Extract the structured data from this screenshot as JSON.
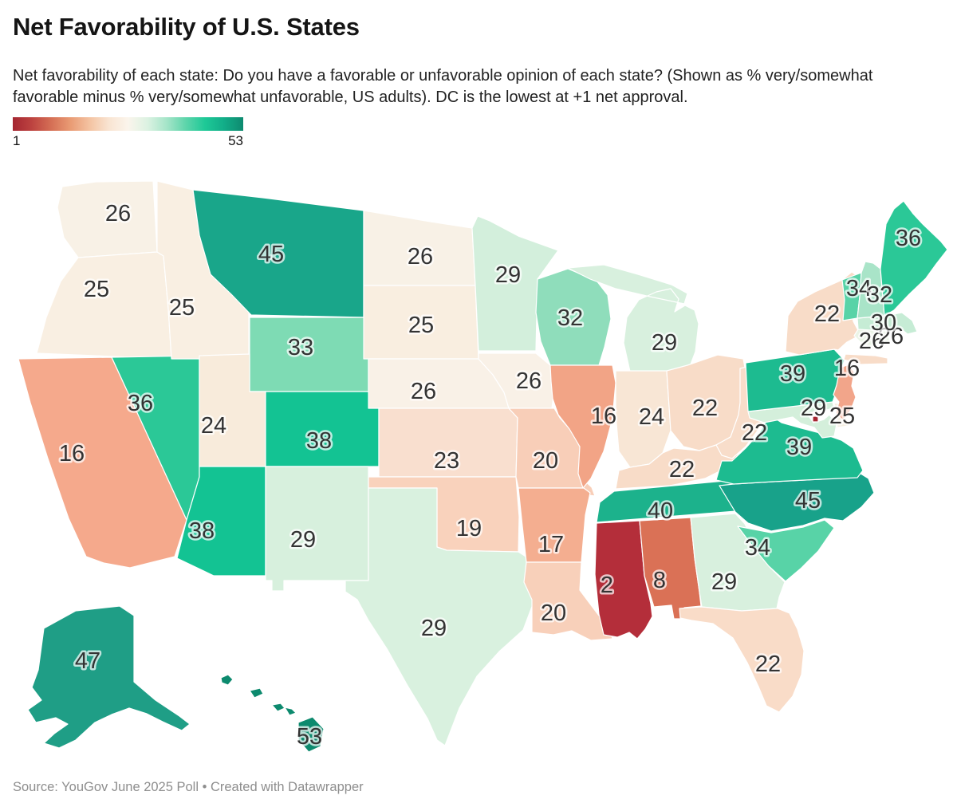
{
  "header": {
    "title": "Net Favorability of U.S. States",
    "subtitle": "Net favorability of each state: Do you have a favorable or unfavorable opinion of each state? (Shown as % very/somewhat favorable minus % very/somewhat unfavorable, US adults). DC is the lowest at +1 net approval."
  },
  "legend": {
    "min_label": "1",
    "max_label": "53",
    "gradient_stops": [
      "#a52631",
      "#bd4340",
      "#d56f55",
      "#e99b74",
      "#f4c3a2",
      "#f9e4d2",
      "#fbf5ec",
      "#dcf2e2",
      "#a6e5c9",
      "#5ed5ab",
      "#1ec997",
      "#12ad88",
      "#0e8a6f"
    ]
  },
  "footer": {
    "source": "Source: YouGov June 2025 Poll • Created with Datawrapper"
  },
  "chart_data": {
    "type": "choropleth",
    "title": "Net Favorability of U.S. States",
    "geography": "United States (50 states + DC)",
    "value_label": "Net favorability (% very/somewhat favorable minus % very/somewhat unfavorable, US adults)",
    "scale": {
      "min": 1,
      "max": 53,
      "palette": "diverging red to teal-green"
    },
    "states": [
      {
        "abbr": "WA",
        "name": "Washington",
        "value": 26,
        "color": "#f8f1e6"
      },
      {
        "abbr": "OR",
        "name": "Oregon",
        "value": 25,
        "color": "#f9efe2"
      },
      {
        "abbr": "CA",
        "name": "California",
        "value": 16,
        "color": "#f5a98c"
      },
      {
        "abbr": "NV",
        "name": "Nevada",
        "value": 36,
        "color": "#2bc897"
      },
      {
        "abbr": "ID",
        "name": "Idaho",
        "value": 25,
        "color": "#f9efe2"
      },
      {
        "abbr": "MT",
        "name": "Montana",
        "value": 45,
        "color": "#19a68a"
      },
      {
        "abbr": "WY",
        "name": "Wyoming",
        "value": 33,
        "color": "#7edbb4"
      },
      {
        "abbr": "UT",
        "name": "Utah",
        "value": 24,
        "color": "#f8ebdb"
      },
      {
        "abbr": "CO",
        "name": "Colorado",
        "value": 38,
        "color": "#13c393"
      },
      {
        "abbr": "AZ",
        "name": "Arizona",
        "value": 38,
        "color": "#13c393"
      },
      {
        "abbr": "NM",
        "name": "New Mexico",
        "value": 29,
        "color": "#d7f0dd"
      },
      {
        "abbr": "ND",
        "name": "North Dakota",
        "value": 26,
        "color": "#f8f1e6"
      },
      {
        "abbr": "SD",
        "name": "South Dakota",
        "value": 25,
        "color": "#f9eee0"
      },
      {
        "abbr": "NE",
        "name": "Nebraska",
        "value": 26,
        "color": "#f9f1e7"
      },
      {
        "abbr": "KS",
        "name": "Kansas",
        "value": 23,
        "color": "#f9dfcf"
      },
      {
        "abbr": "OK",
        "name": "Oklahoma",
        "value": 19,
        "color": "#f9d2bc"
      },
      {
        "abbr": "TX",
        "name": "Texas",
        "value": 29,
        "color": "#d9f1df"
      },
      {
        "abbr": "MN",
        "name": "Minnesota",
        "value": 29,
        "color": "#d3efdc"
      },
      {
        "abbr": "IA",
        "name": "Iowa",
        "value": 26,
        "color": "#f9f1e7"
      },
      {
        "abbr": "MO",
        "name": "Missouri",
        "value": 20,
        "color": "#f8ceb8"
      },
      {
        "abbr": "AR",
        "name": "Arkansas",
        "value": 17,
        "color": "#f4ae90"
      },
      {
        "abbr": "LA",
        "name": "Louisiana",
        "value": 20,
        "color": "#f8d0ba"
      },
      {
        "abbr": "WI",
        "name": "Wisconsin",
        "value": 32,
        "color": "#8fddbb"
      },
      {
        "abbr": "IL",
        "name": "Illinois",
        "value": 16,
        "color": "#f2a486"
      },
      {
        "abbr": "MI",
        "name": "Michigan",
        "value": 29,
        "color": "#d8f0de"
      },
      {
        "abbr": "IN",
        "name": "Indiana",
        "value": 24,
        "color": "#f8e6d5"
      },
      {
        "abbr": "OH",
        "name": "Ohio",
        "value": 22,
        "color": "#f8dcc8"
      },
      {
        "abbr": "KY",
        "name": "Kentucky",
        "value": 22,
        "color": "#f8dcc8"
      },
      {
        "abbr": "TN",
        "name": "Tennessee",
        "value": 40,
        "color": "#1cb28c"
      },
      {
        "abbr": "MS",
        "name": "Mississippi",
        "value": 2,
        "color": "#b42e3a"
      },
      {
        "abbr": "AL",
        "name": "Alabama",
        "value": 8,
        "color": "#da7156"
      },
      {
        "abbr": "GA",
        "name": "Georgia",
        "value": 29,
        "color": "#d8f0de"
      },
      {
        "abbr": "FL",
        "name": "Florida",
        "value": 22,
        "color": "#f9dcc8"
      },
      {
        "abbr": "SC",
        "name": "South Carolina",
        "value": 34,
        "color": "#58d3a7"
      },
      {
        "abbr": "NC",
        "name": "North Carolina",
        "value": 45,
        "color": "#18a28a"
      },
      {
        "abbr": "VA",
        "name": "Virginia",
        "value": 39,
        "color": "#1dbb90"
      },
      {
        "abbr": "WV",
        "name": "West Virginia",
        "value": 22,
        "color": "#f8ddca"
      },
      {
        "abbr": "MD",
        "name": "Maryland",
        "value": 29,
        "color": "#d4efdb"
      },
      {
        "abbr": "DE",
        "name": "Delaware",
        "value": 25,
        "color": "#f6efe2"
      },
      {
        "abbr": "PA",
        "name": "Pennsylvania",
        "value": 39,
        "color": "#1dbb90"
      },
      {
        "abbr": "NJ",
        "name": "New Jersey",
        "value": 16,
        "color": "#f2a58a"
      },
      {
        "abbr": "NY",
        "name": "New York",
        "value": 22,
        "color": "#f8dcc8"
      },
      {
        "abbr": "CT",
        "name": "Connecticut",
        "value": 26,
        "color": "#ebf4e6"
      },
      {
        "abbr": "RI",
        "name": "Rhode Island",
        "value": 26,
        "color": "#ebf4e6"
      },
      {
        "abbr": "MA",
        "name": "Massachusetts",
        "value": 30,
        "color": "#c6ecd5"
      },
      {
        "abbr": "VT",
        "name": "Vermont",
        "value": 34,
        "color": "#58d3a7"
      },
      {
        "abbr": "NH",
        "name": "New Hampshire",
        "value": 32,
        "color": "#a9e4c8"
      },
      {
        "abbr": "ME",
        "name": "Maine",
        "value": 36,
        "color": "#2bc897"
      },
      {
        "abbr": "AK",
        "name": "Alaska",
        "value": 47,
        "color": "#1f9e86"
      },
      {
        "abbr": "HI",
        "name": "Hawaii",
        "value": 53,
        "color": "#0d8a6e"
      },
      {
        "abbr": "DC",
        "name": "Washington, D.C.",
        "value": 1,
        "color": "#a52631"
      }
    ]
  }
}
